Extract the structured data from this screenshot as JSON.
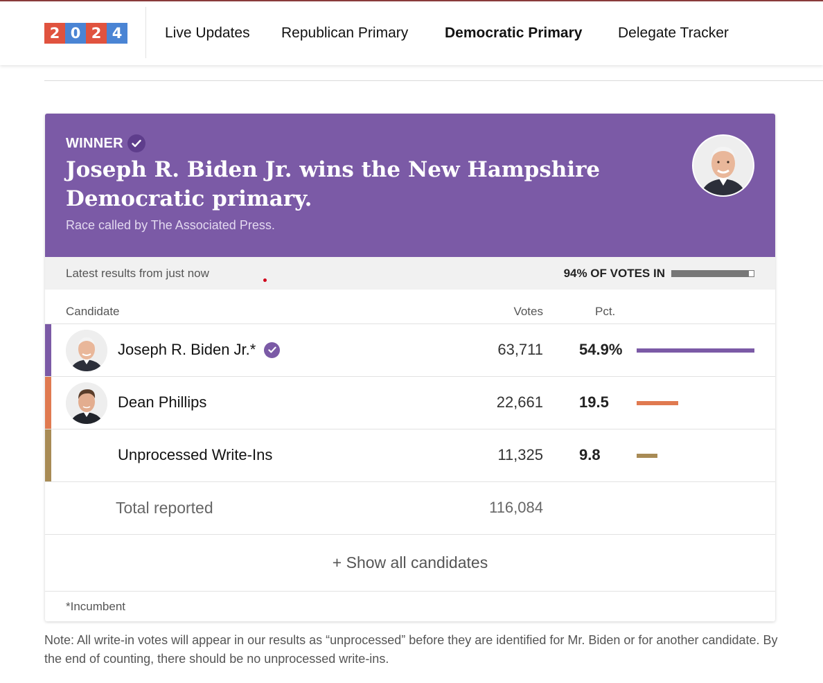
{
  "nav": {
    "logo": [
      {
        "char": "2",
        "color": "#e0533f"
      },
      {
        "char": "0",
        "color": "#4a84d4"
      },
      {
        "char": "2",
        "color": "#e0533f"
      },
      {
        "char": "4",
        "color": "#4a84d4"
      }
    ],
    "links": [
      {
        "label": "Live Updates",
        "active": false
      },
      {
        "label": "Republican Primary",
        "active": false
      },
      {
        "label": "Democratic Primary",
        "active": true
      },
      {
        "label": "Delegate Tracker",
        "active": false
      }
    ]
  },
  "banner": {
    "winner_label": "WINNER",
    "headline": "Joseph R. Biden Jr. wins the New Hampshire Democratic primary.",
    "called_by": "Race called by The Associated Press.",
    "color": "#7b5aa6"
  },
  "status": {
    "latest": "Latest results from just now",
    "votes_in_label": "94% OF VOTES IN",
    "votes_in_fraction": 0.94
  },
  "table": {
    "headers": {
      "candidate": "Candidate",
      "votes": "Votes",
      "pct": "Pct."
    },
    "rows": [
      {
        "name": "Joseph R. Biden Jr.*",
        "winner": true,
        "photo": true,
        "votes": "63,711",
        "pct": "54.9%",
        "pct_value": 54.9,
        "color": "#7b5aa6"
      },
      {
        "name": "Dean Phillips",
        "winner": false,
        "photo": true,
        "votes": "22,661",
        "pct": "19.5",
        "pct_value": 19.5,
        "color": "#e07a50"
      },
      {
        "name": "Unprocessed Write-Ins",
        "winner": false,
        "photo": false,
        "votes": "11,325",
        "pct": "9.8",
        "pct_value": 9.8,
        "color": "#a88b55"
      }
    ],
    "total": {
      "label": "Total reported",
      "votes": "116,084"
    },
    "show_all": "+ Show all candidates",
    "footnote": "*Incumbent"
  },
  "note": "Note: All write-in votes will appear in our results as “unprocessed” before they are identified for Mr. Biden or for another candidate. By the end of counting, there should be no unprocessed write-ins."
}
